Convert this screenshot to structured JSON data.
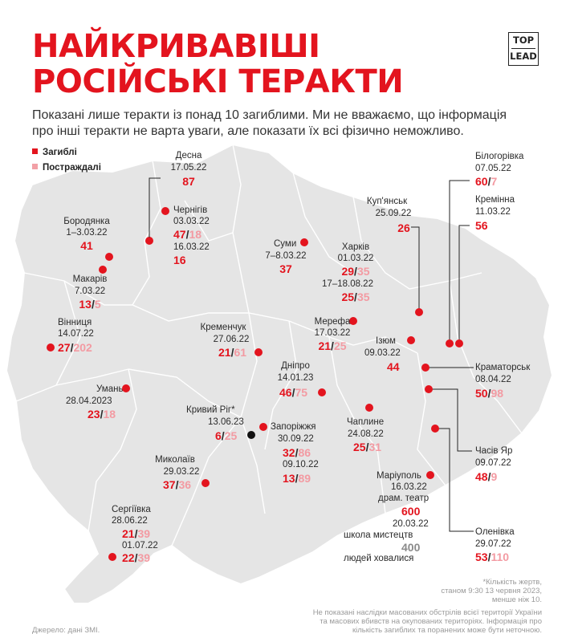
{
  "title": [
    "НАЙКРИВАВІШІ",
    "РОСІЙСЬКІ ТЕРАКТИ"
  ],
  "subtitle": [
    "Показані лише теракти із понад 10 загиблими. Ми не вважаємо, що інформація",
    "про інші теракти не варта уваги, але показати їх всі фізично неможливо."
  ],
  "logo": {
    "top": "TOP",
    "bottom": "LEAD"
  },
  "legend": {
    "killed": "Загиблі",
    "injured": "Постраждалі"
  },
  "colors": {
    "killed": "#e3141e",
    "injured": "#f39aa2",
    "map": "#e4e4e4"
  },
  "events": {
    "desna": {
      "place": "Десна",
      "date": "17.05.22",
      "killed": "87"
    },
    "chernihiv": {
      "place": "Чернігів",
      "date1": "03.03.22",
      "killed1": "47",
      "injured1": "18",
      "date2": "16.03.22",
      "killed2": "16"
    },
    "borodianka": {
      "place": "Бородянка",
      "date": "1–3.03.22",
      "killed": "41"
    },
    "makariv": {
      "place": "Макарів",
      "date": "7.03.22",
      "killed": "13",
      "injured": "5"
    },
    "sumy": {
      "place": "Суми",
      "date": "7–8.03.22",
      "killed": "37"
    },
    "kupiansk": {
      "place": "Куп'янськ",
      "date": "25.09.22",
      "killed": "26"
    },
    "bilohorivka": {
      "place": "Білогорівка",
      "date": "07.05.22",
      "killed": "60",
      "injured": "7"
    },
    "kreminna": {
      "place": "Кремінна",
      "date": "11.03.22",
      "killed": "56"
    },
    "kharkiv": {
      "place": "Харків",
      "date1": "01.03.22",
      "killed1": "29",
      "injured1": "35",
      "date2": "17–18.08.22",
      "killed2": "25",
      "injured2": "35"
    },
    "merefa": {
      "place": "Мерефа",
      "date": "17.03.22",
      "killed": "21",
      "injured": "25"
    },
    "izium": {
      "place": "Ізюм",
      "date": "09.03.22",
      "killed": "44"
    },
    "vinnytsia": {
      "place": "Вінниця",
      "date": "14.07.22",
      "killed": "27",
      "injured": "202"
    },
    "kremenchuk": {
      "place": "Кременчук",
      "date": "27.06.22",
      "killed": "21",
      "injured": "61"
    },
    "kramatorsk": {
      "place": "Краматорськ",
      "date": "08.04.22",
      "killed": "50",
      "injured": "98"
    },
    "dnipro": {
      "place": "Дніпро",
      "date": "14.01.23",
      "killed": "46",
      "injured": "75"
    },
    "uman": {
      "place": "Умань",
      "date": "28.04.2023",
      "killed": "23",
      "injured": "18"
    },
    "kryvyi_rih": {
      "place": "Кривий Ріг*",
      "date": "13.06.23",
      "killed": "6",
      "injured": "25"
    },
    "zaporizhzhia": {
      "place": "Запоріжжя",
      "date1": "30.09.22",
      "killed1": "32",
      "injured1": "86",
      "date2": "09.10.22",
      "killed2": "13",
      "injured2": "89"
    },
    "chapline": {
      "place": "Чаплине",
      "date": "24.08.22",
      "killed": "25",
      "injured": "31"
    },
    "chasiv_yar": {
      "place": "Часів Яр",
      "date": "09.07.22",
      "killed": "48",
      "injured": "9"
    },
    "mykolaiv": {
      "place": "Миколаїв",
      "date": "29.03.22",
      "killed": "37",
      "injured": "36"
    },
    "mariupol": {
      "place": "Маріуполь",
      "date1": "16.03.22",
      "note1": "драм. театр",
      "killed1": "600",
      "date2": "20.03.22",
      "note2": "школа мистецтв",
      "sheltered": "400",
      "note3": "людей ховалися"
    },
    "serhiivka": {
      "place": "Сергіївка",
      "date1": "28.06.22",
      "killed1": "21",
      "injured1": "39",
      "date2": "01.07.22",
      "killed2": "22",
      "injured2": "39"
    },
    "olenivka": {
      "place": "Оленівка",
      "date": "29.07.22",
      "killed": "53",
      "injured": "110"
    }
  },
  "footnote": [
    "*Кількість жертв,",
    "станом 9:30 13 червня 2023,",
    "менше ніж 10."
  ],
  "disclaimer": [
    "Не показані наслідки масованих обстрілів всієї території України",
    "та масових вбивств на окупованих територіях. Інформація про",
    "кількість загиблих та поранених може бути неточною."
  ],
  "source": "Джерело: дані ЗМІ."
}
